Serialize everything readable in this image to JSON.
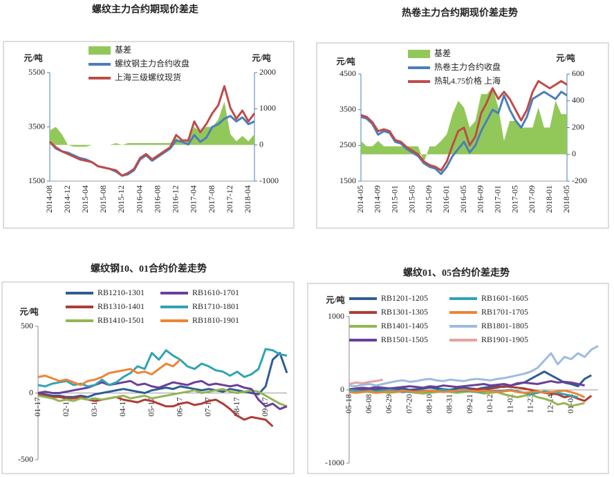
{
  "chart_data": [
    {
      "type": "line",
      "title": "螺纹主力合约期现价差走",
      "y_label": "元/吨",
      "y2_label": "元/吨",
      "categories": [
        "2014-08",
        null,
        null,
        "2014-12",
        null,
        null,
        "2015-04",
        null,
        null,
        "2015-08",
        null,
        null,
        "2015-12",
        null,
        null,
        "2016-04",
        null,
        null,
        "2016-08",
        null,
        null,
        "2016-12",
        null,
        null,
        "2017-04",
        null,
        null,
        "2017-08",
        null,
        null,
        "2017-12",
        null,
        null,
        "2018-04",
        null
      ],
      "ylim": [
        1500,
        5500
      ],
      "yticks": [
        1500,
        3500,
        5500
      ],
      "y2lim": [
        -1000,
        2000
      ],
      "y2ticks": [
        -1000,
        0,
        1000,
        2000
      ],
      "series": [
        {
          "name": "基差",
          "type": "area",
          "axis": "y2",
          "color": "#92c85a",
          "values": [
            400,
            500,
            300,
            0,
            -50,
            -50,
            -50,
            0,
            0,
            0,
            0,
            50,
            0,
            50,
            50,
            50,
            50,
            50,
            50,
            50,
            50,
            200,
            50,
            150,
            500,
            350,
            500,
            500,
            700,
            1200,
            300,
            100,
            250,
            100,
            300
          ]
        },
        {
          "name": "螺纹钢主力合约收盘",
          "color": "#4a7ebb",
          "values": [
            2950,
            2700,
            2600,
            2550,
            2450,
            2350,
            2300,
            2200,
            2050,
            2000,
            1950,
            1850,
            1700,
            1750,
            1900,
            2300,
            2450,
            2250,
            2400,
            2550,
            2700,
            3000,
            2950,
            2850,
            3200,
            2950,
            3100,
            3500,
            3600,
            3800,
            3900,
            3700,
            3850,
            3600,
            3700
          ]
        },
        {
          "name": "上海三级螺纹现货",
          "color": "#be4b48",
          "values": [
            2950,
            2750,
            2600,
            2500,
            2400,
            2300,
            2250,
            2200,
            2050,
            2000,
            1950,
            1900,
            1700,
            1800,
            1950,
            2350,
            2500,
            2300,
            2450,
            2600,
            2750,
            3200,
            3000,
            3000,
            3700,
            3300,
            3600,
            4000,
            4300,
            5000,
            4200,
            3800,
            4100,
            3700,
            4000
          ]
        }
      ]
    },
    {
      "type": "line",
      "title": "热卷主力合约期现价差走势",
      "y_label": "元/吨",
      "y2_label": "元/吨",
      "categories": [
        "2014-05",
        null,
        null,
        "2014-09",
        null,
        null,
        "2015-01",
        null,
        null,
        "2015-05",
        null,
        null,
        "2015-09",
        null,
        null,
        "2016-01",
        null,
        null,
        "2016-05",
        null,
        null,
        "2016-09",
        null,
        null,
        "2017-01",
        null,
        null,
        "2017-05",
        null,
        null,
        "2017-09",
        null,
        null,
        "2018-01",
        null,
        null,
        "2018-05"
      ],
      "ylim": [
        1500,
        4500
      ],
      "yticks": [
        1500,
        2500,
        3500,
        4500
      ],
      "y2lim": [
        -200,
        600
      ],
      "y2ticks": [
        -200,
        0,
        200,
        400,
        600
      ],
      "series": [
        {
          "name": "基差",
          "type": "area",
          "axis": "y2",
          "color": "#92c85a",
          "values": [
            100,
            60,
            60,
            100,
            60,
            60,
            60,
            60,
            60,
            60,
            60,
            -60,
            60,
            60,
            100,
            150,
            300,
            400,
            350,
            200,
            250,
            450,
            450,
            500,
            350,
            100,
            250,
            250,
            200,
            200,
            200,
            350,
            200,
            200,
            400,
            300,
            300
          ]
        },
        {
          "name": "热卷主力合约收盘",
          "color": "#4a7ebb",
          "values": [
            3300,
            3250,
            3100,
            2800,
            2900,
            2850,
            2600,
            2550,
            2400,
            2300,
            2200,
            2000,
            1900,
            1850,
            1700,
            1900,
            2200,
            2400,
            2600,
            2300,
            2500,
            2900,
            3200,
            3500,
            3400,
            3900,
            3500,
            3200,
            3000,
            3300,
            3800,
            3900,
            4000,
            3900,
            3800,
            4000,
            3900
          ]
        },
        {
          "name": "热轧4.75价格 上海",
          "color": "#be4b48",
          "values": [
            3350,
            3300,
            3150,
            2900,
            2950,
            2900,
            2650,
            2600,
            2450,
            2350,
            2250,
            2050,
            1950,
            1900,
            1800,
            2050,
            2500,
            2900,
            3000,
            2500,
            2750,
            3400,
            3700,
            4100,
            3800,
            4000,
            3800,
            3500,
            3200,
            3500,
            4000,
            4300,
            4200,
            4100,
            4200,
            4300,
            4200
          ]
        }
      ]
    },
    {
      "type": "line",
      "title": "螺纹钢10、01合约价差走势",
      "y_label": "元/吨",
      "categories": [
        "01-17",
        null,
        null,
        null,
        "02-17",
        null,
        null,
        null,
        "03-17",
        null,
        null,
        null,
        "04-17",
        null,
        null,
        null,
        "05-17",
        null,
        null,
        null,
        "06-17",
        null,
        null,
        null,
        "07-17",
        null,
        null,
        null,
        "08-17",
        null,
        null,
        null,
        "09-17",
        null,
        null,
        null
      ],
      "ylim": [
        -500,
        500
      ],
      "yticks": [
        -500,
        0,
        500
      ],
      "series": [
        {
          "name": "RB1210-1301",
          "color": "#2e5c94",
          "values": [
            0,
            -10,
            -20,
            -20,
            -30,
            -30,
            -20,
            -30,
            -10,
            0,
            10,
            20,
            30,
            20,
            10,
            0,
            20,
            30,
            40,
            30,
            50,
            40,
            30,
            20,
            30,
            20,
            10,
            30,
            20,
            10,
            0,
            -10,
            50,
            250,
            300,
            150
          ]
        },
        {
          "name": "RB1310-1401",
          "color": "#b03a33",
          "values": [
            -10,
            -20,
            -30,
            -30,
            -40,
            -40,
            -30,
            -50,
            -60,
            -50,
            -40,
            -30,
            -50,
            -60,
            -70,
            -50,
            -60,
            -80,
            -100,
            -100,
            -80,
            -70,
            -90,
            -80,
            -60,
            -50,
            -80,
            -120,
            -170,
            -200,
            -180,
            -190,
            -200,
            -250,
            null,
            null
          ]
        },
        {
          "name": "RB1410-1501",
          "color": "#93b553",
          "values": [
            -20,
            -30,
            -40,
            -60,
            -50,
            -60,
            -40,
            -50,
            -40,
            -50,
            -40,
            -30,
            -20,
            -40,
            -30,
            -20,
            -40,
            -30,
            -20,
            -10,
            0,
            10,
            20,
            0,
            10,
            20,
            30,
            10,
            0,
            10,
            20,
            10,
            -20,
            -50,
            -80,
            -100
          ]
        },
        {
          "name": "RB1610-1701",
          "color": "#6b3f99",
          "values": [
            0,
            10,
            0,
            0,
            10,
            20,
            30,
            40,
            60,
            80,
            60,
            70,
            80,
            90,
            60,
            70,
            50,
            40,
            60,
            80,
            70,
            60,
            80,
            90,
            60,
            70,
            60,
            50,
            60,
            40,
            30,
            -50,
            -100,
            -80,
            -120,
            -100
          ]
        },
        {
          "name": "RB1710-1801",
          "color": "#2fa3b5",
          "values": [
            60,
            50,
            70,
            80,
            90,
            60,
            70,
            50,
            60,
            100,
            60,
            80,
            120,
            150,
            200,
            180,
            300,
            250,
            320,
            280,
            250,
            200,
            180,
            220,
            200,
            170,
            160,
            130,
            160,
            120,
            140,
            180,
            330,
            320,
            290,
            280
          ]
        },
        {
          "name": "RB1810-1901",
          "color": "#ee8434",
          "values": [
            120,
            130,
            110,
            90,
            100,
            80,
            60,
            90,
            100,
            120,
            150,
            160,
            170,
            180,
            150,
            160,
            140,
            180,
            220,
            200,
            250,
            null,
            null,
            null,
            null,
            null,
            null,
            null,
            null,
            null,
            null,
            null,
            null,
            null,
            null,
            null
          ]
        }
      ]
    },
    {
      "type": "line",
      "title": "螺纹01、05合约价差走势",
      "y_label": "元/吨",
      "categories": [
        "05-18",
        null,
        null,
        "06-08",
        null,
        null,
        "06-29",
        null,
        null,
        "07-20",
        null,
        null,
        "08-10",
        null,
        null,
        "08-31",
        null,
        null,
        "09-21",
        null,
        null,
        "10-12",
        null,
        null,
        "11-02",
        null,
        null,
        "11-23",
        null,
        null,
        "12-14",
        null,
        null,
        "01-04",
        null,
        null,
        null,
        null
      ],
      "ylim": [
        -1000,
        1000
      ],
      "yticks": [
        -1000,
        0,
        1000
      ],
      "series": [
        {
          "name": "RB1201-1205",
          "color": "#2e5c94",
          "values": [
            0,
            0,
            10,
            0,
            10,
            20,
            10,
            10,
            20,
            0,
            10,
            20,
            30,
            20,
            10,
            0,
            20,
            30,
            20,
            10,
            30,
            40,
            50,
            40,
            60,
            80,
            100,
            150,
            200,
            250,
            200,
            150,
            100,
            80,
            50,
            150,
            200,
            null
          ]
        },
        {
          "name": "RB1301-1305",
          "color": "#b03a33",
          "values": [
            0,
            -10,
            -10,
            -20,
            -10,
            -20,
            -10,
            -20,
            -30,
            -20,
            -10,
            -20,
            -30,
            -10,
            -20,
            -10,
            -20,
            -10,
            0,
            10,
            0,
            20,
            30,
            50,
            40,
            30,
            20,
            0,
            -20,
            -40,
            -50,
            -60,
            -100,
            -80,
            -120,
            -150,
            -80,
            null
          ]
        },
        {
          "name": "RB1401-1405",
          "color": "#93b553",
          "values": [
            -20,
            -30,
            -20,
            -30,
            -40,
            -30,
            -40,
            -30,
            -20,
            -30,
            -40,
            -50,
            -40,
            -30,
            -20,
            -30,
            -40,
            -30,
            -20,
            -30,
            -50,
            -40,
            -30,
            -60,
            -80,
            -100,
            -80,
            -60,
            -100,
            -120,
            -150,
            -200,
            -180,
            -220,
            -200,
            -180,
            null,
            null
          ]
        },
        {
          "name": "RB1501-1505",
          "color": "#6b3f99",
          "values": [
            10,
            20,
            30,
            20,
            40,
            30,
            20,
            30,
            40,
            50,
            40,
            30,
            50,
            40,
            60,
            50,
            40,
            50,
            60,
            70,
            80,
            60,
            70,
            80,
            60,
            90,
            100,
            90,
            80,
            100,
            120,
            100,
            110,
            100,
            80,
            60,
            null,
            null
          ]
        },
        {
          "name": "RB1601-1605",
          "color": "#2fa3b5",
          "values": [
            0,
            -10,
            -20,
            -10,
            -20,
            -10,
            0,
            -10,
            -20,
            -30,
            -20,
            -10,
            -20,
            -10,
            0,
            -10,
            -20,
            -10,
            -20,
            -30,
            -20,
            -10,
            -20,
            -10,
            0,
            -20,
            -40,
            -60,
            -40,
            -20,
            -30,
            -40,
            -60,
            -80,
            -100,
            null,
            null,
            null
          ]
        },
        {
          "name": "RB1701-1705",
          "color": "#ee8434",
          "values": [
            -30,
            -40,
            -30,
            -20,
            -40,
            -30,
            -20,
            -30,
            -10,
            -20,
            -30,
            -20,
            -10,
            -20,
            -30,
            -20,
            -10,
            0,
            -10,
            -20,
            -10,
            -20,
            -30,
            -20,
            -10,
            -30,
            -40,
            -30,
            -20,
            -40,
            -30,
            -20,
            -10,
            -30,
            -60,
            -100,
            null,
            null
          ]
        },
        {
          "name": "RB1801-1805",
          "color": "#9dbbe0",
          "values": [
            60,
            50,
            70,
            80,
            60,
            80,
            100,
            120,
            130,
            110,
            120,
            140,
            150,
            130,
            120,
            140,
            130,
            120,
            140,
            150,
            140,
            130,
            150,
            160,
            180,
            200,
            220,
            250,
            300,
            400,
            500,
            350,
            450,
            420,
            500,
            450,
            550,
            600
          ]
        },
        {
          "name": "RB1901-1905",
          "color": "#e3a3a1",
          "values": [
            80,
            100,
            90,
            110,
            120,
            140,
            null,
            null,
            null,
            null,
            null,
            null,
            null,
            null,
            null,
            null,
            null,
            null,
            null,
            null,
            null,
            null,
            null,
            null,
            null,
            null,
            null,
            null,
            null,
            null,
            null,
            null,
            null,
            null,
            null,
            null,
            null,
            null
          ]
        }
      ]
    }
  ]
}
